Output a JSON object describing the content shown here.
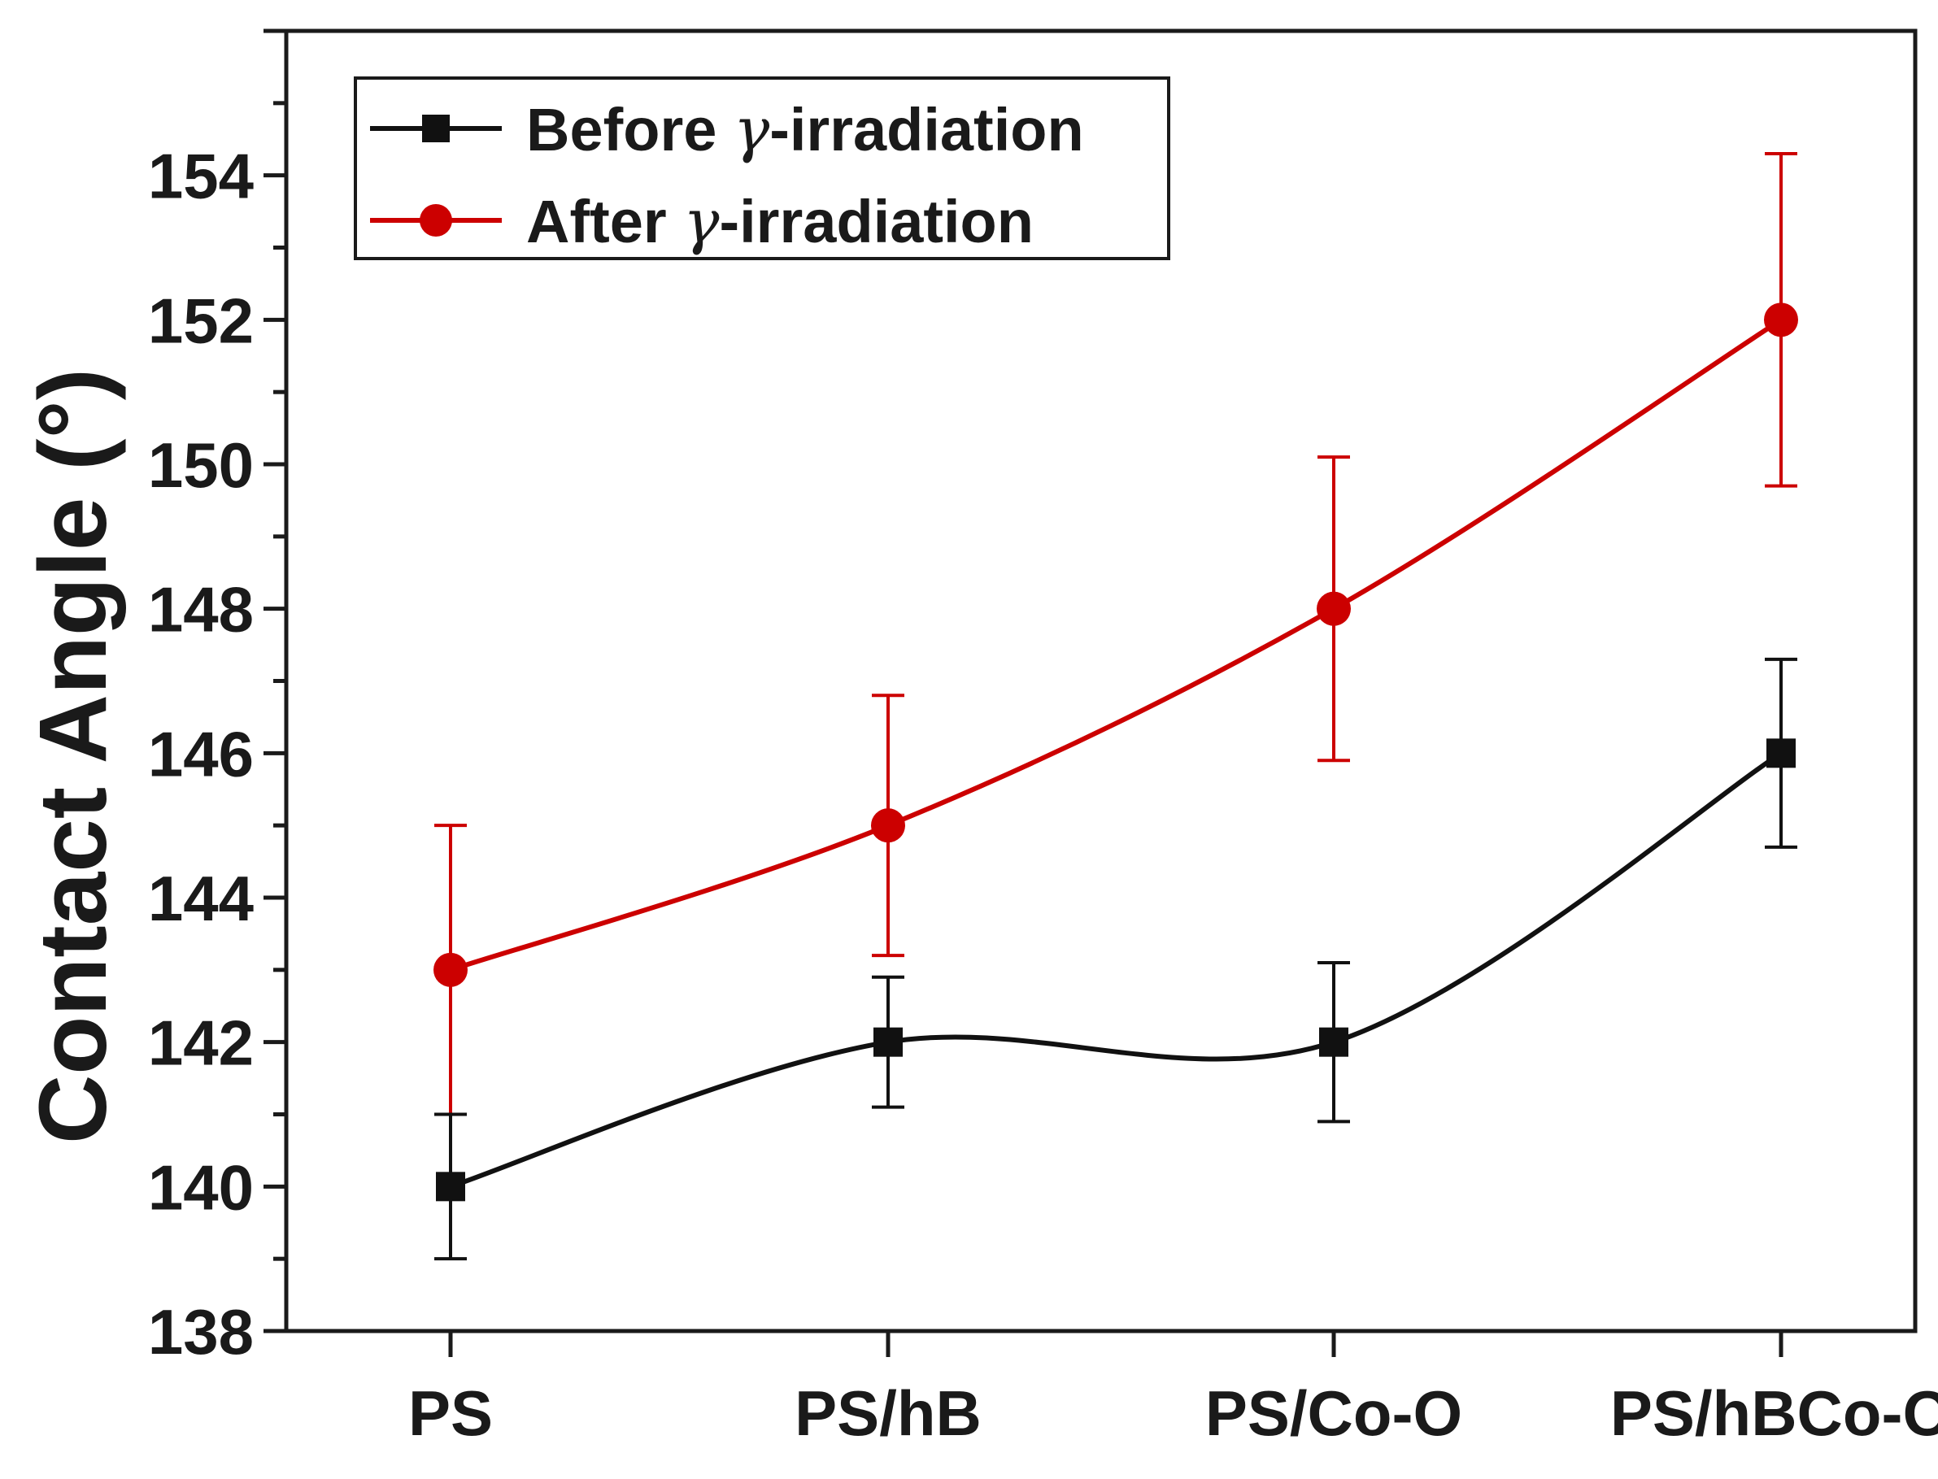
{
  "chart_data": {
    "type": "line",
    "title": "",
    "xlabel": "",
    "ylabel": "Contact Angle (°)",
    "categories": [
      "PS",
      "PS/hB",
      "PS/Co-O",
      "PS/hBCo-O"
    ],
    "ylim": [
      138,
      156
    ],
    "yticks": [
      138,
      140,
      142,
      144,
      146,
      148,
      150,
      152,
      154
    ],
    "legend_position": "top-left",
    "grid": false,
    "series": [
      {
        "name": "Before γ-irradiation",
        "legend_prefix": "Before ",
        "legend_greek": "γ",
        "legend_suffix": "-irradiation",
        "color": "#111111",
        "marker": "square",
        "smooth": true,
        "values": [
          140,
          142,
          142,
          146
        ],
        "errors": [
          1.0,
          0.9,
          1.1,
          1.3
        ]
      },
      {
        "name": "After γ-irradiation",
        "legend_prefix": "After ",
        "legend_greek": "γ",
        "legend_suffix": "-irradiation",
        "color": "#cc0000",
        "marker": "circle",
        "smooth": true,
        "values": [
          143,
          145,
          148,
          152
        ],
        "errors": [
          2.0,
          1.8,
          2.1,
          2.3
        ]
      }
    ]
  }
}
